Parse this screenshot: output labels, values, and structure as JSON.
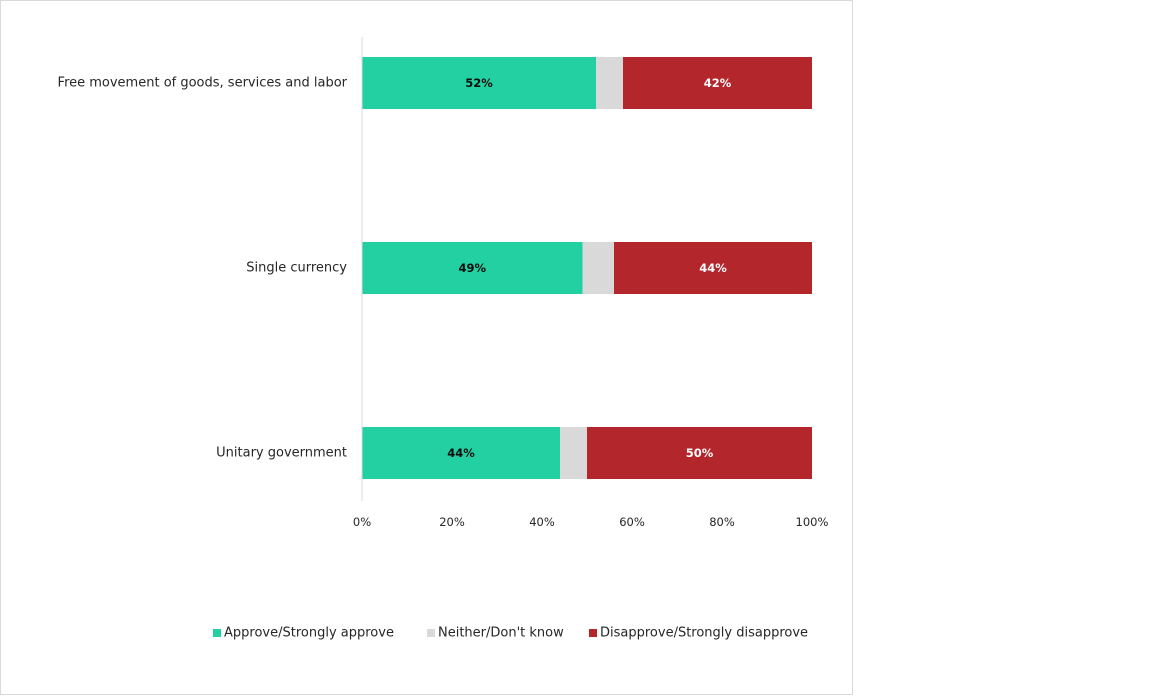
{
  "chart_data": {
    "type": "bar",
    "orientation": "horizontal",
    "stacked": true,
    "title": "",
    "xlabel": "",
    "ylabel": "",
    "categories": [
      "Free movement of goods, services and labor",
      "Single currency",
      "Unitary government"
    ],
    "series": [
      {
        "name": "Approve/Strongly approve",
        "color": "#23d0a2",
        "label_color": "#0d0d0d",
        "values": [
          52,
          49,
          44
        ],
        "labels": [
          "52%",
          "49%",
          "44%"
        ]
      },
      {
        "name": "Neither/Don't know",
        "color": "#d9d9d9",
        "label_color": "",
        "values": [
          6,
          7,
          6
        ],
        "labels": [
          "",
          "",
          ""
        ]
      },
      {
        "name": "Disapprove/Strongly disapprove",
        "color": "#b2262c",
        "label_color": "#ffffff",
        "values": [
          42,
          44,
          50
        ],
        "labels": [
          "42%",
          "44%",
          "50%"
        ]
      }
    ],
    "x_ticks": [
      "0%",
      "20%",
      "40%",
      "60%",
      "80%",
      "100%"
    ],
    "xlim": [
      0,
      100
    ],
    "grid": false,
    "legend_position": "bottom"
  }
}
